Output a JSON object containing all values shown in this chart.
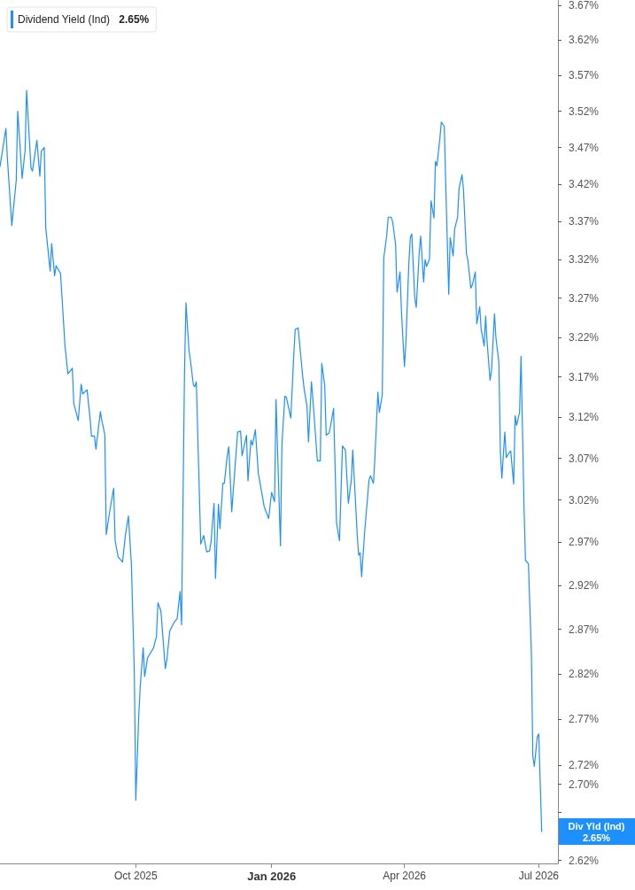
{
  "chart_data": {
    "type": "line",
    "x": [
      "2025-07-01",
      "2025-07-05",
      "2025-07-06",
      "2025-07-09",
      "2025-07-12",
      "2025-07-13",
      "2025-07-16",
      "2025-07-18",
      "2025-07-19",
      "2025-07-22",
      "2025-07-23",
      "2025-07-26",
      "2025-07-28",
      "2025-07-29",
      "2025-07-31",
      "2025-08-01",
      "2025-08-04",
      "2025-08-05",
      "2025-08-07",
      "2025-08-08",
      "2025-08-11",
      "2025-08-14",
      "2025-08-16",
      "2025-08-19",
      "2025-08-20",
      "2025-08-23",
      "2025-08-25",
      "2025-08-26",
      "2025-08-29",
      "2025-08-31",
      "2025-09-01",
      "2025-09-03",
      "2025-09-04",
      "2025-09-07",
      "2025-09-08",
      "2025-09-10",
      "2025-09-11",
      "2025-09-13",
      "2025-09-16",
      "2025-09-17",
      "2025-09-19",
      "2025-09-22",
      "2025-09-24",
      "2025-09-26",
      "2025-09-28",
      "2025-09-30",
      "2025-10-01",
      "2025-10-03",
      "2025-10-04",
      "2025-10-06",
      "2025-10-07",
      "2025-10-09",
      "2025-10-13",
      "2025-10-15",
      "2025-10-16",
      "2025-10-18",
      "2025-10-21",
      "2025-10-22",
      "2025-10-24",
      "2025-10-27",
      "2025-10-29",
      "2025-10-31",
      "2025-11-01",
      "2025-11-03",
      "2025-11-04",
      "2025-11-06",
      "2025-11-07",
      "2025-11-09",
      "2025-11-10",
      "2025-11-11",
      "2025-11-14",
      "2025-11-16",
      "2025-11-18",
      "2025-11-20",
      "2025-11-21",
      "2025-11-23",
      "2025-11-24",
      "2025-11-26",
      "2025-11-27",
      "2025-11-29",
      "2025-11-30",
      "2025-12-02",
      "2025-12-03",
      "2025-12-05",
      "2025-12-06",
      "2025-12-09",
      "2025-12-11",
      "2025-12-12",
      "2025-12-15",
      "2025-12-16",
      "2025-12-18",
      "2025-12-19",
      "2025-12-21",
      "2025-12-23",
      "2025-12-27",
      "2025-12-30",
      "2026-01-01",
      "2026-01-03",
      "2026-01-04",
      "2026-01-07",
      "2026-01-08",
      "2026-01-10",
      "2026-01-11",
      "2026-01-14",
      "2026-01-16",
      "2026-01-17",
      "2026-01-19",
      "2026-01-22",
      "2026-01-23",
      "2026-01-25",
      "2026-01-26",
      "2026-01-28",
      "2026-01-29",
      "2026-02-01",
      "2026-02-03",
      "2026-02-04",
      "2026-02-06",
      "2026-02-07",
      "2026-02-09",
      "2026-02-10",
      "2026-02-12",
      "2026-02-14",
      "2026-02-16",
      "2026-02-18",
      "2026-02-20",
      "2026-02-22",
      "2026-02-24",
      "2026-02-25",
      "2026-02-28",
      "2026-03-01",
      "2026-03-02",
      "2026-03-03",
      "2026-03-05",
      "2026-03-08",
      "2026-03-09",
      "2026-03-11",
      "2026-03-12",
      "2026-03-14",
      "2026-03-15",
      "2026-03-17",
      "2026-03-18",
      "2026-03-20",
      "2026-03-21",
      "2026-03-23",
      "2026-03-24",
      "2026-03-26",
      "2026-03-27",
      "2026-03-29",
      "2026-03-30",
      "2026-04-01",
      "2026-04-02",
      "2026-04-04",
      "2026-04-05",
      "2026-04-06",
      "2026-04-08",
      "2026-04-09",
      "2026-04-11",
      "2026-04-12",
      "2026-04-14",
      "2026-04-15",
      "2026-04-16",
      "2026-04-18",
      "2026-04-19",
      "2026-04-21",
      "2026-04-22",
      "2026-04-23",
      "2026-04-25",
      "2026-04-26",
      "2026-04-28",
      "2026-04-29",
      "2026-05-01",
      "2026-05-02",
      "2026-05-04",
      "2026-05-05",
      "2026-05-07",
      "2026-05-08",
      "2026-05-10",
      "2026-05-11",
      "2026-05-13",
      "2026-05-14",
      "2026-05-16",
      "2026-05-17",
      "2026-05-19",
      "2026-05-20",
      "2026-05-22",
      "2026-05-23",
      "2026-05-25",
      "2026-05-26",
      "2026-05-27",
      "2026-05-29",
      "2026-05-30",
      "2026-06-01",
      "2026-06-02",
      "2026-06-04",
      "2026-06-05",
      "2026-06-06",
      "2026-06-08",
      "2026-06-09",
      "2026-06-11",
      "2026-06-12",
      "2026-06-14",
      "2026-06-15",
      "2026-06-16",
      "2026-06-18",
      "2026-06-19",
      "2026-06-21",
      "2026-06-22",
      "2026-06-24",
      "2026-06-26",
      "2026-06-27",
      "2026-06-28",
      "2026-06-30",
      "2026-07-01",
      "2026-07-03"
    ],
    "series": [
      {
        "name": "Dividend Yield (Ind)",
        "color": "#1e8fff",
        "values": [
          3.444,
          3.496,
          3.455,
          3.365,
          3.425,
          3.52,
          3.428,
          3.466,
          3.549,
          3.442,
          3.438,
          3.48,
          3.431,
          3.465,
          3.47,
          3.362,
          3.305,
          3.341,
          3.299,
          3.312,
          3.302,
          3.21,
          3.174,
          3.181,
          3.137,
          3.116,
          3.161,
          3.149,
          3.154,
          3.119,
          3.097,
          3.097,
          3.081,
          3.127,
          3.116,
          3.099,
          2.979,
          3.003,
          3.034,
          2.972,
          2.953,
          2.947,
          2.979,
          3.001,
          2.945,
          2.822,
          2.683,
          2.774,
          2.806,
          2.849,
          2.817,
          2.838,
          2.849,
          2.862,
          2.9,
          2.891,
          2.826,
          2.835,
          2.868,
          2.878,
          2.882,
          2.913,
          2.875,
          3.176,
          3.264,
          3.204,
          3.191,
          3.16,
          3.158,
          3.164,
          2.968,
          2.978,
          2.959,
          2.96,
          2.971,
          3.016,
          2.928,
          3.015,
          2.986,
          3.04,
          3.04,
          3.074,
          3.084,
          3.006,
          3.03,
          3.102,
          3.103,
          3.073,
          3.098,
          3.043,
          3.092,
          3.086,
          3.105,
          3.052,
          3.012,
          2.998,
          3.029,
          3.018,
          3.142,
          2.966,
          3.087,
          3.146,
          3.145,
          3.119,
          3.197,
          3.23,
          3.232,
          3.172,
          3.156,
          3.133,
          3.09,
          3.164,
          3.142,
          3.067,
          3.067,
          3.187,
          3.159,
          3.098,
          3.101,
          3.11,
          3.131,
          2.993,
          2.972,
          3.085,
          3.08,
          3.016,
          3.044,
          3.08,
          2.979,
          2.955,
          2.958,
          2.93,
          2.981,
          3.044,
          3.049,
          3.04,
          3.071,
          3.151,
          3.126,
          3.148,
          3.322,
          3.352,
          3.376,
          3.376,
          3.37,
          3.34,
          3.278,
          3.304,
          3.252,
          3.183,
          3.214,
          3.316,
          3.349,
          3.354,
          3.27,
          3.258,
          3.328,
          3.351,
          3.291,
          3.32,
          3.311,
          3.321,
          3.398,
          3.375,
          3.451,
          3.445,
          3.482,
          3.505,
          3.499,
          3.419,
          3.275,
          3.349,
          3.325,
          3.36,
          3.376,
          3.415,
          3.433,
          3.413,
          3.328,
          3.319,
          3.283,
          3.287,
          3.304,
          3.237,
          3.259,
          3.23,
          3.209,
          3.247,
          3.214,
          3.166,
          3.178,
          3.25,
          3.219,
          3.188,
          3.077,
          3.046,
          3.102,
          3.071,
          3.077,
          3.079,
          3.039,
          3.122,
          3.11,
          3.126,
          3.196,
          3.013,
          2.949,
          2.945,
          2.844,
          2.73,
          2.719,
          2.751,
          2.754,
          2.65
        ]
      }
    ],
    "xlim": [
      "2025-07-01",
      "2026-07-14"
    ],
    "xticks": [
      {
        "value": "2025-10-01",
        "label": "Oct 2025"
      },
      {
        "value": "2026-01-01",
        "label": "Jan 2026"
      },
      {
        "value": "2026-04-01",
        "label": "Apr 2026"
      },
      {
        "value": "2026-07-01",
        "label": "Jul 2026"
      }
    ],
    "ylim": [
      2.617,
      3.677
    ],
    "yticks": [
      {
        "value": 2.62,
        "label": "2.62%"
      },
      {
        "value": 2.67,
        "label": null
      },
      {
        "value": 2.7,
        "label": "2.70%"
      },
      {
        "value": 2.72,
        "label": "2.72%"
      },
      {
        "value": 2.77,
        "label": "2.77%"
      },
      {
        "value": 2.82,
        "label": "2.82%"
      },
      {
        "value": 2.87,
        "label": "2.87%"
      },
      {
        "value": 2.92,
        "label": "2.92%"
      },
      {
        "value": 2.97,
        "label": "2.97%"
      },
      {
        "value": 3.02,
        "label": "3.02%"
      },
      {
        "value": 3.07,
        "label": "3.07%"
      },
      {
        "value": 3.12,
        "label": "3.12%"
      },
      {
        "value": 3.17,
        "label": "3.17%"
      },
      {
        "value": 3.22,
        "label": "3.22%"
      },
      {
        "value": 3.27,
        "label": "3.27%"
      },
      {
        "value": 3.32,
        "label": "3.32%"
      },
      {
        "value": 3.37,
        "label": "3.37%"
      },
      {
        "value": 3.42,
        "label": "3.42%"
      },
      {
        "value": 3.47,
        "label": "3.47%"
      },
      {
        "value": 3.52,
        "label": "3.52%"
      },
      {
        "value": 3.57,
        "label": "3.57%"
      },
      {
        "value": 3.62,
        "label": "3.62%"
      },
      {
        "value": 3.67,
        "label": "3.67%"
      }
    ],
    "log": true,
    "grid": false,
    "legend": "top left",
    "annotations": [
      {
        "text": "Div Yld (Ind)",
        "x": "2026-07-03",
        "y": 2.65
      },
      "2.65%"
    ]
  }
}
